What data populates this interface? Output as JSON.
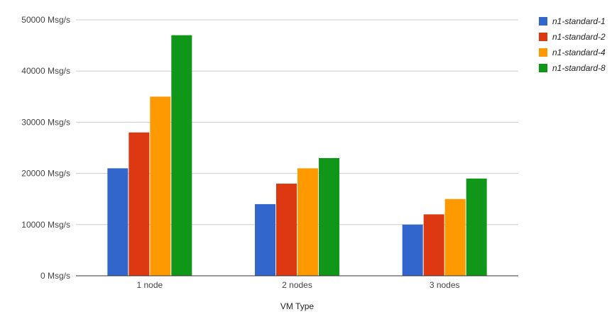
{
  "chart_data": {
    "type": "bar",
    "title": "",
    "xlabel": "VM Type",
    "ylabel": "",
    "categories": [
      "1 node",
      "2 nodes",
      "3 nodes"
    ],
    "series": [
      {
        "name": "n1-standard-1",
        "color": "#3366cc",
        "values": [
          21000,
          14000,
          10000
        ]
      },
      {
        "name": "n1-standard-2",
        "color": "#dc3912",
        "values": [
          28000,
          18000,
          12000
        ]
      },
      {
        "name": "n1-standard-4",
        "color": "#ff9900",
        "values": [
          35000,
          21000,
          15000
        ]
      },
      {
        "name": "n1-standard-8",
        "color": "#109618",
        "values": [
          47000,
          23000,
          19000
        ]
      }
    ],
    "ylim": [
      0,
      50000
    ],
    "yticks": [
      {
        "value": 0,
        "label": "0  Msg/s"
      },
      {
        "value": 10000,
        "label": "10000  Msg/s"
      },
      {
        "value": 20000,
        "label": "20000  Msg/s"
      },
      {
        "value": 30000,
        "label": "30000  Msg/s"
      },
      {
        "value": 40000,
        "label": "40000  Msg/s"
      },
      {
        "value": 50000,
        "label": "50000  Msg/s"
      }
    ],
    "grid": true,
    "legend_position": "right"
  }
}
